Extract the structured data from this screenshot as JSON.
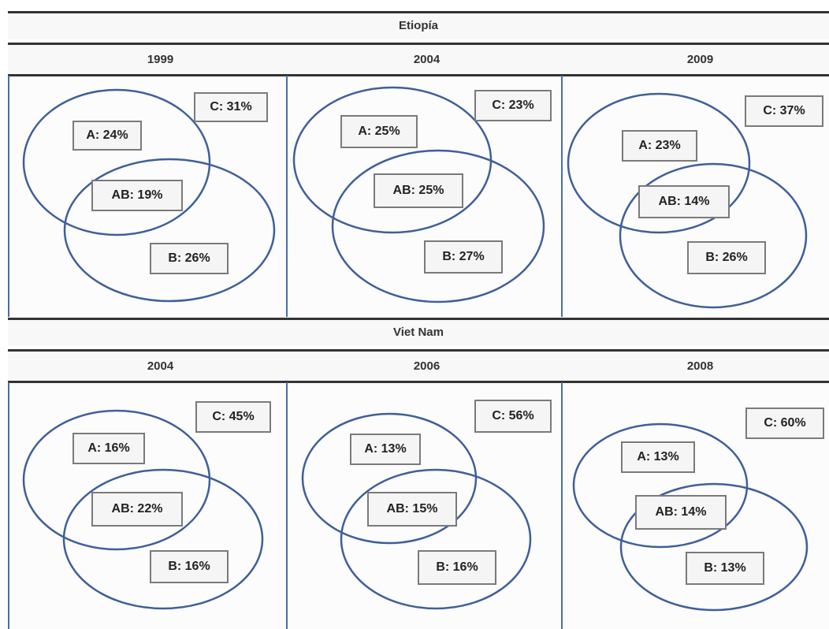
{
  "sections": [
    {
      "country": "Etiopía",
      "years": [
        {
          "year": "1999",
          "a": "A: 24%",
          "ab": "AB: 19%",
          "b": "B: 26%",
          "c": "C: 31%"
        },
        {
          "year": "2004",
          "a": "A: 25%",
          "ab": "AB: 25%",
          "b": "B: 27%",
          "c": "C: 23%"
        },
        {
          "year": "2009",
          "a": "A: 23%",
          "ab": "AB: 14%",
          "b": "B: 26%",
          "c": "C: 37%"
        }
      ]
    },
    {
      "country": "Viet Nam",
      "years": [
        {
          "year": "2004",
          "a": "A: 16%",
          "ab": "AB: 22%",
          "b": "B: 16%",
          "c": "C: 45%"
        },
        {
          "year": "2006",
          "a": "A: 13%",
          "ab": "AB: 15%",
          "b": "B: 16%",
          "c": "C: 56%"
        },
        {
          "year": "2008",
          "a": "A: 13%",
          "ab": "AB: 14%",
          "b": "B: 13%",
          "c": "C: 60%"
        }
      ]
    }
  ],
  "colors": {
    "ellipse": "#3f5f9a",
    "border": "#333333"
  }
}
